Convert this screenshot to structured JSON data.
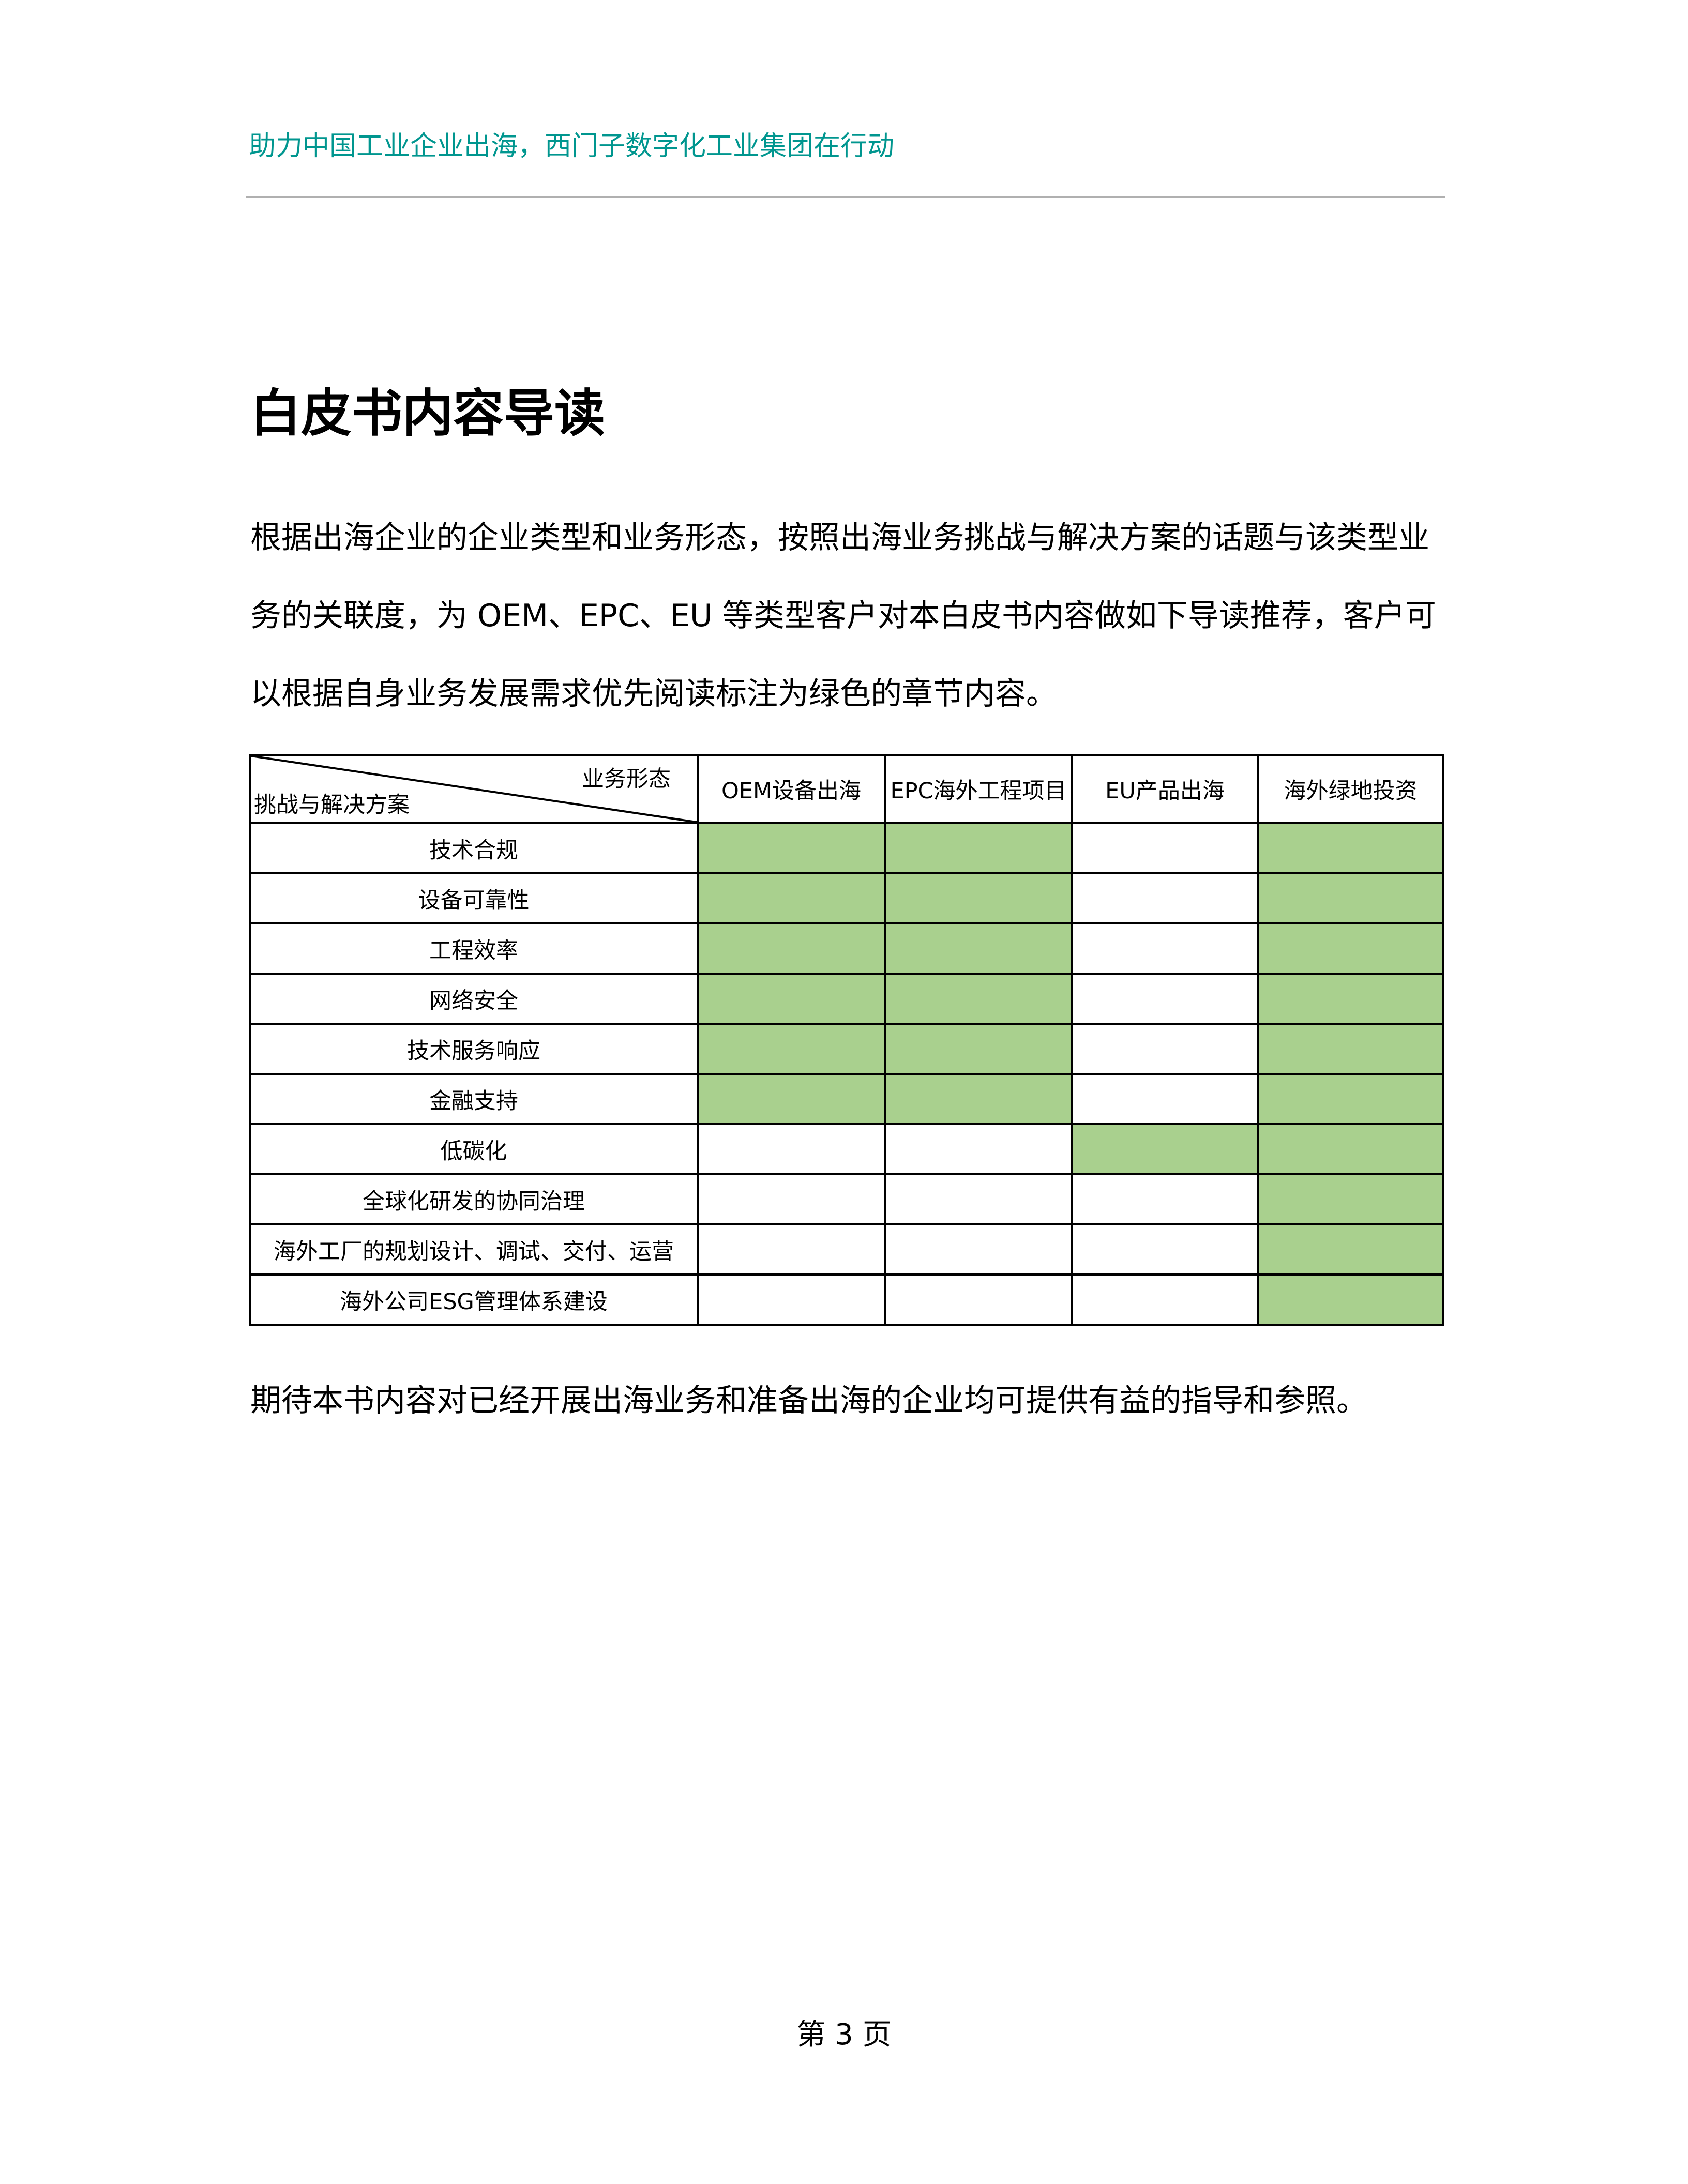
{
  "header": {
    "text": "助力中国工业企业出海，西门子数字化工业集团在行动"
  },
  "title": "白皮书内容导读",
  "intro": "根据出海企业的企业类型和业务形态，按照出海业务挑战与解决方案的话题与该类型业务的关联度，为 OEM、EPC、EU 等类型客户对本白皮书内容做如下导读推荐，客户可以根据自身业务发展需求优先阅读标注为绿色的章节内容。",
  "table": {
    "corner_top": "业务形态",
    "corner_bottom": "挑战与解决方案",
    "columns": [
      "OEM设备出海",
      "EPC海外工程项目",
      "EU产品出海",
      "海外绿地投资"
    ],
    "highlight_color": "#a9d08e",
    "rows": [
      {
        "label": "技术合规",
        "highlight": [
          true,
          true,
          false,
          true
        ]
      },
      {
        "label": "设备可靠性",
        "highlight": [
          true,
          true,
          false,
          true
        ]
      },
      {
        "label": "工程效率",
        "highlight": [
          true,
          true,
          false,
          true
        ]
      },
      {
        "label": "网络安全",
        "highlight": [
          true,
          true,
          false,
          true
        ]
      },
      {
        "label": "技术服务响应",
        "highlight": [
          true,
          true,
          false,
          true
        ]
      },
      {
        "label": "金融支持",
        "highlight": [
          true,
          true,
          false,
          true
        ]
      },
      {
        "label": "低碳化",
        "highlight": [
          false,
          false,
          true,
          true
        ]
      },
      {
        "label": "全球化研发的协同治理",
        "highlight": [
          false,
          false,
          false,
          true
        ]
      },
      {
        "label": "海外工厂的规划设计、调试、交付、运营",
        "highlight": [
          false,
          false,
          false,
          true
        ]
      },
      {
        "label": "海外公司ESG管理体系建设",
        "highlight": [
          false,
          false,
          false,
          true
        ]
      }
    ]
  },
  "closing": "期待本书内容对已经开展出海业务和准备出海的企业均可提供有益的指导和参照。",
  "footer": "第 3 页"
}
